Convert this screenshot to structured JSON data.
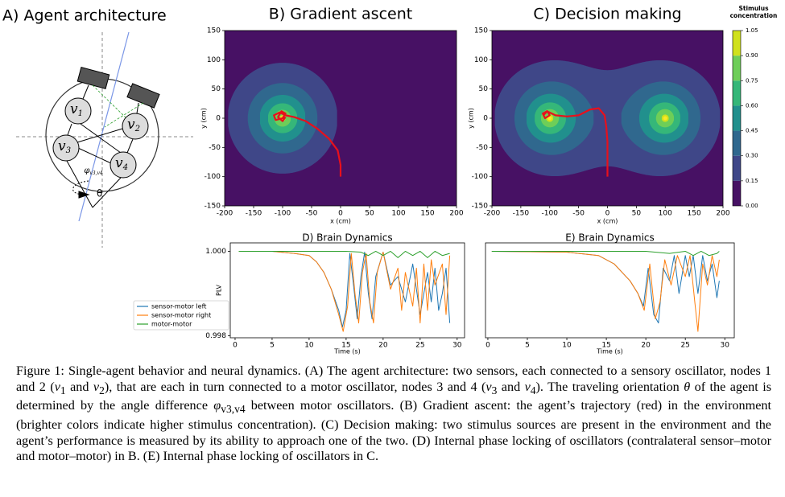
{
  "figure": {
    "agent": {
      "title": "A) Agent architecture",
      "nodes": [
        {
          "var": "v",
          "sub": "1"
        },
        {
          "var": "v",
          "sub": "2"
        },
        {
          "var": "v",
          "sub": "3"
        },
        {
          "var": "v",
          "sub": "4"
        }
      ],
      "phi": {
        "var": "φ",
        "sub": "v3,v4"
      },
      "theta": "θ"
    },
    "environments": [
      {
        "type": "contour",
        "title": "B) Gradient ascent",
        "xlabel": "x (cm)",
        "ylabel": "y (cm)",
        "xlim": [
          -200,
          200
        ],
        "ylim": [
          -150,
          150
        ],
        "xticks": [
          -200,
          -150,
          -100,
          -50,
          0,
          50,
          100,
          150,
          200
        ],
        "yticks": [
          -150,
          -100,
          -50,
          0,
          50,
          100,
          150
        ],
        "sources": [
          {
            "x": -100,
            "y": 0
          }
        ],
        "trajectory": {
          "color": "#e8101c",
          "x": [
            0,
            0,
            -5,
            -20,
            -40,
            -60,
            -80,
            -95,
            -105,
            -115,
            -112,
            -100,
            -95,
            -102,
            -108,
            -100,
            -95
          ],
          "y": [
            -100,
            -80,
            -55,
            -35,
            -18,
            -5,
            2,
            5,
            10,
            5,
            -3,
            0,
            8,
            12,
            2,
            -5,
            2
          ]
        }
      },
      {
        "type": "contour",
        "title": "C) Decision making",
        "xlabel": "x (cm)",
        "ylabel": "y (cm)",
        "xlim": [
          -200,
          200
        ],
        "ylim": [
          -150,
          150
        ],
        "xticks": [
          -200,
          -150,
          -100,
          -50,
          0,
          50,
          100,
          150,
          200
        ],
        "yticks": [
          -150,
          -100,
          -50,
          0,
          50,
          100,
          150
        ],
        "sources": [
          {
            "x": -100,
            "y": 0
          },
          {
            "x": 100,
            "y": 0
          }
        ],
        "trajectory": {
          "color": "#e8101c",
          "x": [
            0,
            0,
            0,
            -2,
            -5,
            -15,
            -30,
            -50,
            -70,
            -90,
            -105,
            -112,
            -108,
            -100,
            -104,
            -110
          ],
          "y": [
            -100,
            -70,
            -40,
            -15,
            5,
            17,
            15,
            5,
            3,
            5,
            12,
            8,
            0,
            5,
            12,
            6
          ]
        }
      }
    ],
    "colorbar": {
      "title": [
        "Stimulus",
        "concentration"
      ],
      "ticks": [
        {
          "value": 0,
          "label": "0.00"
        },
        {
          "value": 0.15,
          "label": "0.15"
        },
        {
          "value": 0.3,
          "label": "0.30"
        },
        {
          "value": 0.45,
          "label": "0.45"
        },
        {
          "value": 0.6,
          "label": "0.60"
        },
        {
          "value": 0.75,
          "label": "0.75"
        },
        {
          "value": 0.9,
          "label": "0.90"
        },
        {
          "value": 1.05,
          "label": "1.05"
        }
      ],
      "colors": [
        "#471164",
        "#3f4788",
        "#30688e",
        "#21908d",
        "#35b779",
        "#6ece58",
        "#d0e11c"
      ]
    },
    "dynamics": [
      {
        "type": "line",
        "title": "D) Brain Dynamics",
        "xlabel": "Time (s)",
        "ylabel": "PLV",
        "legend": "left",
        "xlim": [
          -0.65,
          31
        ],
        "ylim": [
          0.99795,
          1.0002
        ],
        "xticks": [
          0,
          5,
          10,
          15,
          20,
          25,
          30
        ],
        "yticks": [
          {
            "value": 1,
            "label": "1.000"
          },
          {
            "value": 0.998,
            "label": "0.998"
          }
        ],
        "series": [
          {
            "name": "sensor-motor left",
            "color": "#1f77b4",
            "x": [
              0.5,
              5,
              8,
              10,
              11,
              12,
              13,
              14,
              14.5,
              15,
              15.5,
              16,
              16.5,
              17,
              17.5,
              18,
              18.5,
              19,
              20,
              21,
              22,
              23,
              24,
              25,
              25.5,
              26,
              26.5,
              27,
              27.5,
              28,
              28.5,
              29
            ],
            "values": [
              1.0,
              1.0,
              0.99995,
              0.9999,
              0.99975,
              0.9995,
              0.9991,
              0.9986,
              0.9982,
              0.9986,
              0.99995,
              0.9992,
              0.9984,
              0.9994,
              0.99998,
              0.999,
              0.9984,
              0.9994,
              0.99998,
              0.9992,
              0.9994,
              0.9988,
              0.9997,
              0.9985,
              0.999,
              0.9995,
              0.9988,
              0.9996,
              0.9986,
              0.999,
              0.9996,
              0.9983
            ]
          },
          {
            "name": "sensor-motor right",
            "color": "#ff7f0e",
            "x": [
              0.5,
              5,
              8,
              10,
              11,
              12,
              13,
              14,
              14.6,
              15.2,
              15.7,
              16.2,
              16.7,
              17.2,
              17.7,
              18.2,
              18.7,
              19.2,
              20,
              21,
              22,
              22.5,
              23,
              24,
              24.5,
              25,
              25.5,
              26,
              26.5,
              27,
              28,
              28.5,
              29
            ],
            "values": [
              1.0,
              1.0,
              0.99995,
              0.9999,
              0.99975,
              0.9995,
              0.9991,
              0.9985,
              0.9981,
              0.9987,
              0.99995,
              0.999,
              0.9983,
              0.9995,
              0.99995,
              0.9988,
              0.9983,
              0.9995,
              0.99998,
              0.9991,
              0.9996,
              0.9986,
              0.9995,
              0.9987,
              0.9996,
              0.9983,
              0.9997,
              0.9986,
              0.9998,
              0.9992,
              0.9997,
              0.9985,
              0.9999
            ]
          },
          {
            "name": "motor-motor",
            "color": "#2ca02c",
            "x": [
              0.5,
              10,
              15,
              17,
              18,
              19,
              20,
              21,
              22,
              23,
              24,
              25,
              26,
              27,
              28,
              29
            ],
            "values": [
              1.0,
              1.0,
              1.0,
              0.99998,
              0.9999,
              1.0,
              0.9999,
              1.0,
              0.99985,
              1.0,
              0.9999,
              1.0,
              0.99985,
              1.0,
              0.9999,
              0.99995
            ]
          }
        ]
      },
      {
        "type": "line",
        "title": "E) Brain Dynamics",
        "xlabel": "Time (s)",
        "xlim": [
          -0.3,
          31.2
        ],
        "ylim": [
          0.99795,
          1.0002
        ],
        "xticks": [
          0,
          5,
          10,
          15,
          20,
          25,
          30
        ],
        "series": [
          {
            "name": "sensor-motor left",
            "color": "#1f77b4",
            "x": [
              0.5,
              10,
              14,
              16,
              18,
              19,
              19.7,
              20.3,
              21,
              21.6,
              22.2,
              23,
              23.6,
              24.2,
              25,
              25.5,
              26,
              26.6,
              27.2,
              27.8,
              28.4,
              29,
              29.3
            ],
            "values": [
              1.0,
              0.99998,
              0.9999,
              0.9997,
              0.9993,
              0.999,
              0.9987,
              0.9996,
              0.9985,
              0.9983,
              0.9996,
              0.9993,
              0.9999,
              0.999,
              0.9999,
              0.9994,
              0.9999,
              0.999,
              0.9999,
              0.9993,
              0.9997,
              0.9989,
              0.9993
            ]
          },
          {
            "name": "sensor-motor right",
            "color": "#ff7f0e",
            "x": [
              0.5,
              10,
              14,
              16,
              18,
              19,
              19.8,
              20.5,
              21.2,
              21.8,
              22.4,
              23.2,
              24,
              25,
              25.6,
              26.2,
              26.6,
              27.2,
              27.8,
              28.4,
              29,
              29.3
            ],
            "values": [
              1.0,
              0.99998,
              0.9999,
              0.9997,
              0.9993,
              0.999,
              0.9986,
              0.9997,
              0.9984,
              0.9988,
              0.9998,
              0.9992,
              0.9999,
              0.9994,
              0.9999,
              0.9988,
              0.9981,
              0.9997,
              0.9992,
              0.9999,
              0.9994,
              0.9998
            ]
          },
          {
            "name": "motor-motor",
            "color": "#2ca02c",
            "x": [
              0.5,
              15,
              20,
              23,
              25,
              26,
              27,
              28,
              29,
              29.3
            ],
            "values": [
              1.0,
              1.0,
              1.0,
              0.99995,
              1.0,
              0.9999,
              1.0,
              0.9999,
              0.99995,
              1.0
            ]
          }
        ]
      }
    ]
  },
  "caption": [
    "Figure 1: Single-agent behavior and neural dynamics. (A) The agent architecture: two sensors, each connected to a sensory oscillator, nodes 1 and 2 (",
    {
      "var": "v",
      "sub": "1"
    },
    " and ",
    {
      "var": "v",
      "sub": "2"
    },
    "), that are each in turn connected to a motor oscillator, nodes 3 and 4 (",
    {
      "var": "v",
      "sub": "3"
    },
    " and ",
    {
      "var": "v",
      "sub": "4"
    },
    "). The traveling orientation ",
    {
      "var": "θ"
    },
    " of the agent is determined by the angle difference ",
    {
      "var": "φ",
      "sub": "v3,v4"
    },
    " between motor oscillators. (B) Gradient ascent: the agent’s trajectory (red) in the environment (brighter colors indicate higher stimulus concentration). (C) Decision making: two stimulus sources are present in the environment and the agent’s performance is measured by its ability to approach one of the two. (D) Internal phase locking of oscillators (contralateral sensor–motor and motor–motor) in B. (E) Internal phase locking of oscillators in C."
  ]
}
